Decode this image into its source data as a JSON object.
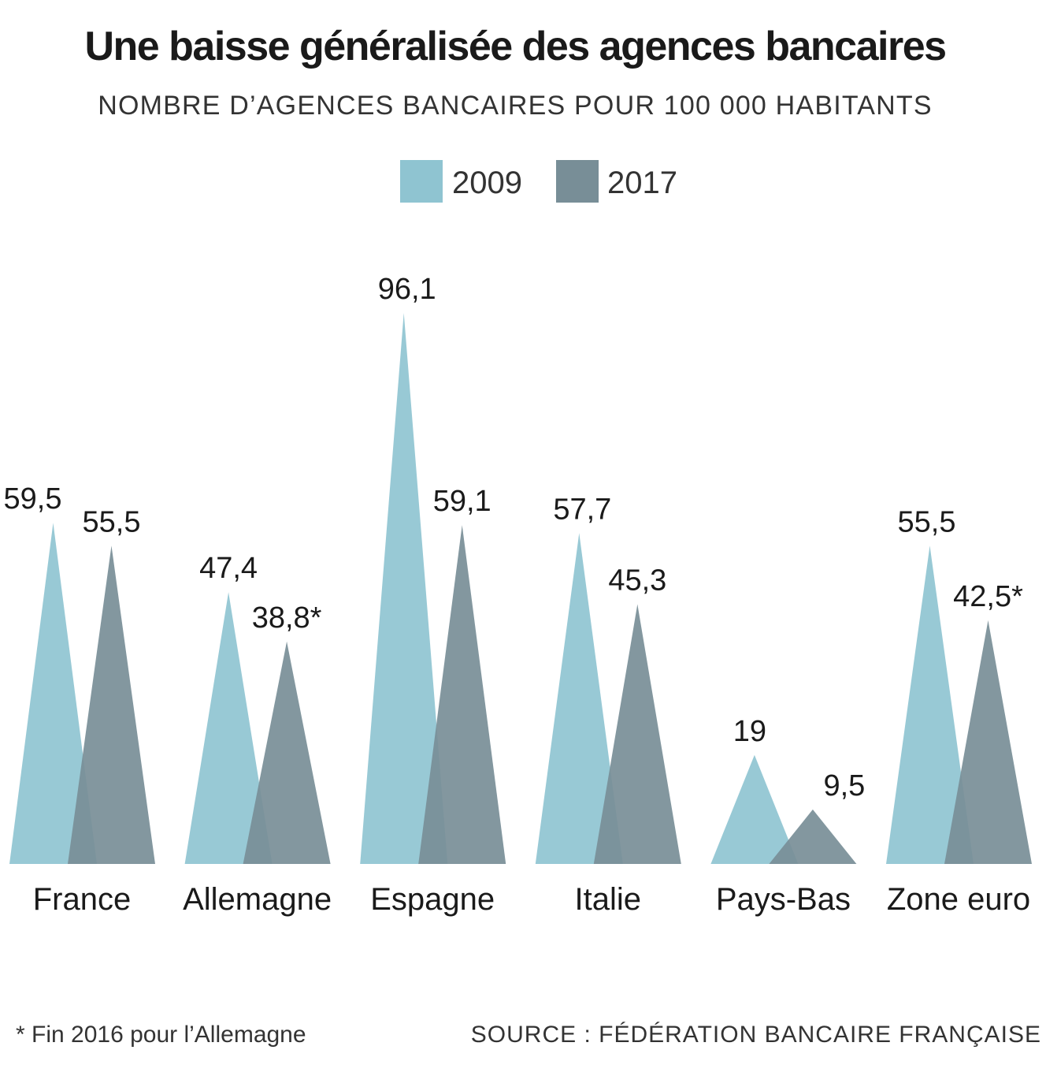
{
  "title": "Une baisse généralisée des agences bancaires",
  "subtitle": "NOMBRE D’AGENCES BANCAIRES POUR 100 000 HABITANTS",
  "footnote": "* Fin 2016 pour l’Allemagne",
  "source": "SOURCE : FÉDÉRATION BANCAIRE FRANÇAISE",
  "colors": {
    "series_2009": "#8fc4d1",
    "series_2017": "#788e97"
  },
  "chart_data": {
    "type": "bar",
    "mark_shape": "triangle",
    "categories": [
      "France",
      "Allemagne",
      "Espagne",
      "Italie",
      "Pays-Bas",
      "Zone euro"
    ],
    "series": [
      {
        "name": "2009",
        "values": [
          59.5,
          47.4,
          96.1,
          57.7,
          19,
          55.5
        ],
        "labels": [
          "59,5",
          "47,4",
          "96,1",
          "57,7",
          "19",
          "55,5"
        ]
      },
      {
        "name": "2017",
        "values": [
          55.5,
          38.8,
          59.1,
          45.3,
          9.5,
          42.5
        ],
        "labels": [
          "55,5",
          "38,8*",
          "59,1",
          "45,3",
          "9,5",
          "42,5*"
        ]
      }
    ],
    "legend_position": "top-center",
    "grid": false,
    "ylim": [
      0,
      96.1
    ]
  }
}
